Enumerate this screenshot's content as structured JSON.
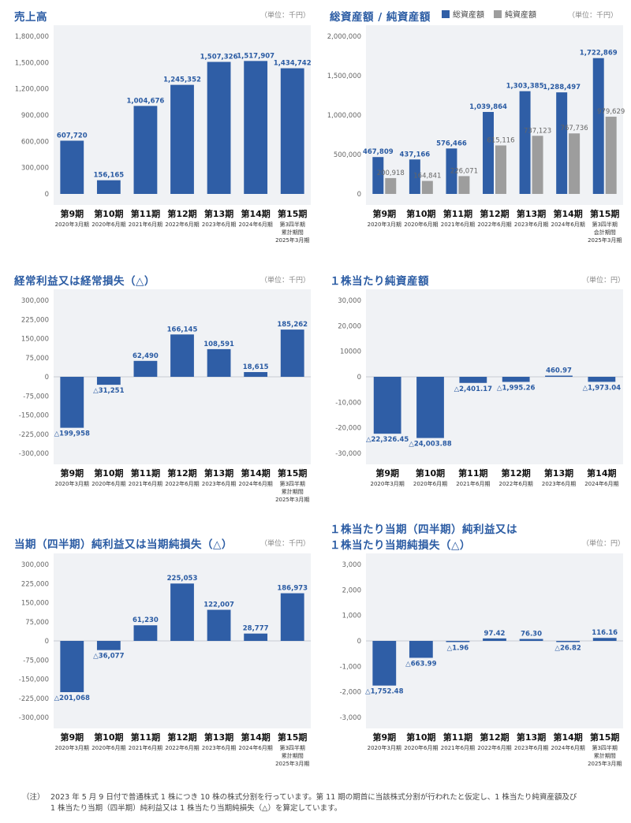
{
  "colors": {
    "primary": "#2f5ea6",
    "secondary": "#9d9d9d",
    "plot_bg": "#f0f2f5"
  },
  "units": {
    "thousand_yen": "（単位：千円）",
    "yen": "（単位：円）"
  },
  "panels": {
    "revenue": {
      "title": "売上高"
    },
    "assets": {
      "title": "総資産額 / 純資産額",
      "legend1": "総資産額",
      "legend2": "純資産額"
    },
    "ordinary": {
      "title": "経常利益又は経常損失（△）"
    },
    "bps": {
      "title": "１株当たり純資産額"
    },
    "netincome": {
      "title": "当期（四半期）純利益又は当期純損失（△）"
    },
    "eps": {
      "title1": "１株当たり当期（四半期）純利益又は",
      "title2": "１株当たり当期純損失（△）"
    }
  },
  "note": {
    "label": "（注）",
    "line1": "2023 年 5 月 9 日付で普通株式 1 株につき 10 株の株式分割を行っています。第 11 期の期首に当該株式分割が行われたと仮定し、1 株当たり純資産額及び",
    "line2": "1 株当たり当期（四半期）純利益又は 1 株当たり当期純損失（△）を算定しています。"
  },
  "chart_data": [
    {
      "id": "revenue",
      "type": "bar",
      "categories": [
        "第9期",
        "第10期",
        "第11期",
        "第12期",
        "第13期",
        "第14期",
        "第15期"
      ],
      "subs": [
        [
          "2020年3月期"
        ],
        [
          "2020年6月期"
        ],
        [
          "2021年6月期"
        ],
        [
          "2022年6月期"
        ],
        [
          "2023年6月期"
        ],
        [
          "2024年6月期"
        ],
        [
          "第3四半期",
          "累計期間",
          "2025年3月期"
        ]
      ],
      "series": [
        {
          "values": [
            607720,
            156165,
            1004676,
            1245352,
            1507326,
            1517907,
            1434742
          ],
          "labels": [
            "607,720",
            "156,165",
            "1,004,676",
            "1,245,352",
            "1,507,326",
            "1,517,907",
            "1,434,742"
          ]
        }
      ],
      "ylim": [
        0,
        1800000
      ],
      "ticks": [
        0,
        300000,
        600000,
        900000,
        1200000,
        1500000,
        1800000
      ],
      "tick_labels": [
        "0",
        "300,000",
        "600,000",
        "900,000",
        "1,200,000",
        "1,500,000",
        "1,800,000"
      ]
    },
    {
      "id": "assets",
      "type": "bar",
      "categories": [
        "第9期",
        "第10期",
        "第11期",
        "第12期",
        "第13期",
        "第14期",
        "第15期"
      ],
      "subs": [
        [
          "2020年3月期"
        ],
        [
          "2020年6月期"
        ],
        [
          "2021年6月期"
        ],
        [
          "2022年6月期"
        ],
        [
          "2023年6月期"
        ],
        [
          "2024年6月期"
        ],
        [
          "第3四半期",
          "会計期間",
          "2025年3月期"
        ]
      ],
      "series": [
        {
          "name": "総資産額",
          "values": [
            467809,
            437166,
            576466,
            1039864,
            1303385,
            1288497,
            1722869
          ],
          "labels": [
            "467,809",
            "437,166",
            "576,466",
            "1,039,864",
            "1,303,385",
            "1,288,497",
            "1,722,869"
          ]
        },
        {
          "name": "純資産額",
          "values": [
            200918,
            164841,
            226071,
            615116,
            737123,
            767736,
            979629
          ],
          "labels": [
            "200,918",
            "164,841",
            "226,071",
            "615,116",
            "737,123",
            "767,736",
            "979,629"
          ]
        }
      ],
      "ylim": [
        0,
        2000000
      ],
      "ticks": [
        0,
        500000,
        1000000,
        1500000,
        2000000
      ],
      "tick_labels": [
        "0",
        "500,000",
        "1,000,000",
        "1,500,000",
        "2,000,000"
      ]
    },
    {
      "id": "ordinary",
      "type": "bar",
      "categories": [
        "第9期",
        "第10期",
        "第11期",
        "第12期",
        "第13期",
        "第14期",
        "第15期"
      ],
      "subs": [
        [
          "2020年3月期"
        ],
        [
          "2020年6月期"
        ],
        [
          "2021年6月期"
        ],
        [
          "2022年6月期"
        ],
        [
          "2023年6月期"
        ],
        [
          "2024年6月期"
        ],
        [
          "第3四半期",
          "累計期間",
          "2025年3月期"
        ]
      ],
      "series": [
        {
          "values": [
            -199958,
            -31251,
            62490,
            166145,
            108591,
            18615,
            185262
          ],
          "labels": [
            "△199,958",
            "△31,251",
            "62,490",
            "166,145",
            "108,591",
            "18,615",
            "185,262"
          ]
        }
      ],
      "ylim": [
        -300000,
        300000
      ],
      "ticks": [
        -300000,
        -225000,
        -150000,
        -75000,
        0,
        75000,
        150000,
        225000,
        300000
      ],
      "tick_labels": [
        "-300,000",
        "-225,000",
        "-150,000",
        "-75,000",
        "0",
        "75,000",
        "150,000",
        "225,000",
        "300,000"
      ]
    },
    {
      "id": "bps",
      "type": "bar",
      "categories": [
        "第9期",
        "第10期",
        "第11期",
        "第12期",
        "第13期",
        "第14期"
      ],
      "subs": [
        [
          "2020年3月期"
        ],
        [
          "2020年6月期"
        ],
        [
          "2021年6月期"
        ],
        [
          "2022年6月期"
        ],
        [
          "2023年6月期"
        ],
        [
          "2024年6月期"
        ]
      ],
      "series": [
        {
          "values": [
            -22326.45,
            -24003.88,
            -2401.17,
            -1995.26,
            460.97,
            -1973.04
          ],
          "labels": [
            "△22,326.45",
            "△24,003.88",
            "△2,401.17",
            "△1,995.26",
            "460.97",
            "△1,973.04"
          ]
        }
      ],
      "ylim": [
        -30000,
        30000
      ],
      "ticks": [
        -30000,
        -20000,
        -10000,
        0,
        10000,
        20000,
        30000
      ],
      "tick_labels": [
        "-30,000",
        "-20,000",
        "-10,000",
        "0",
        "10000",
        "20,000",
        "30,000"
      ]
    },
    {
      "id": "netincome",
      "type": "bar",
      "categories": [
        "第9期",
        "第10期",
        "第11期",
        "第12期",
        "第13期",
        "第14期",
        "第15期"
      ],
      "subs": [
        [
          "2020年3月期"
        ],
        [
          "2020年6月期"
        ],
        [
          "2021年6月期"
        ],
        [
          "2022年6月期"
        ],
        [
          "2023年6月期"
        ],
        [
          "2024年6月期"
        ],
        [
          "第3四半期",
          "累計期間",
          "2025年3月期"
        ]
      ],
      "series": [
        {
          "values": [
            -201068,
            -36077,
            61230,
            225053,
            122007,
            28777,
            186973
          ],
          "labels": [
            "△201,068",
            "△36,077",
            "61,230",
            "225,053",
            "122,007",
            "28,777",
            "186,973"
          ]
        }
      ],
      "ylim": [
        -300000,
        300000
      ],
      "ticks": [
        -300000,
        -225000,
        -150000,
        -75000,
        0,
        75000,
        150000,
        225000,
        300000
      ],
      "tick_labels": [
        "-300,000",
        "-225,000",
        "-150,000",
        "-75,000",
        "0",
        "75,000",
        "150,000",
        "225,000",
        "300,000"
      ]
    },
    {
      "id": "eps",
      "type": "bar",
      "categories": [
        "第9期",
        "第10期",
        "第11期",
        "第12期",
        "第13期",
        "第14期",
        "第15期"
      ],
      "subs": [
        [
          "2020年3月期"
        ],
        [
          "2020年6月期"
        ],
        [
          "2021年6月期"
        ],
        [
          "2022年6月期"
        ],
        [
          "2023年6月期"
        ],
        [
          "2024年6月期"
        ],
        [
          "第3四半期",
          "累計期間",
          "2025年3月期"
        ]
      ],
      "series": [
        {
          "values": [
            -1752.48,
            -663.99,
            -1.96,
            97.42,
            76.3,
            -26.82,
            116.16
          ],
          "labels": [
            "△1,752.48",
            "△663.99",
            "△1.96",
            "97.42",
            "76.30",
            "△26.82",
            "116.16"
          ]
        }
      ],
      "ylim": [
        -3000,
        3000
      ],
      "ticks": [
        -3000,
        -2000,
        -1000,
        0,
        1000,
        2000,
        3000
      ],
      "tick_labels": [
        "-3,000",
        "-2,000",
        "-1,000",
        "0",
        "1,000",
        "2,000",
        "3,000"
      ]
    }
  ]
}
